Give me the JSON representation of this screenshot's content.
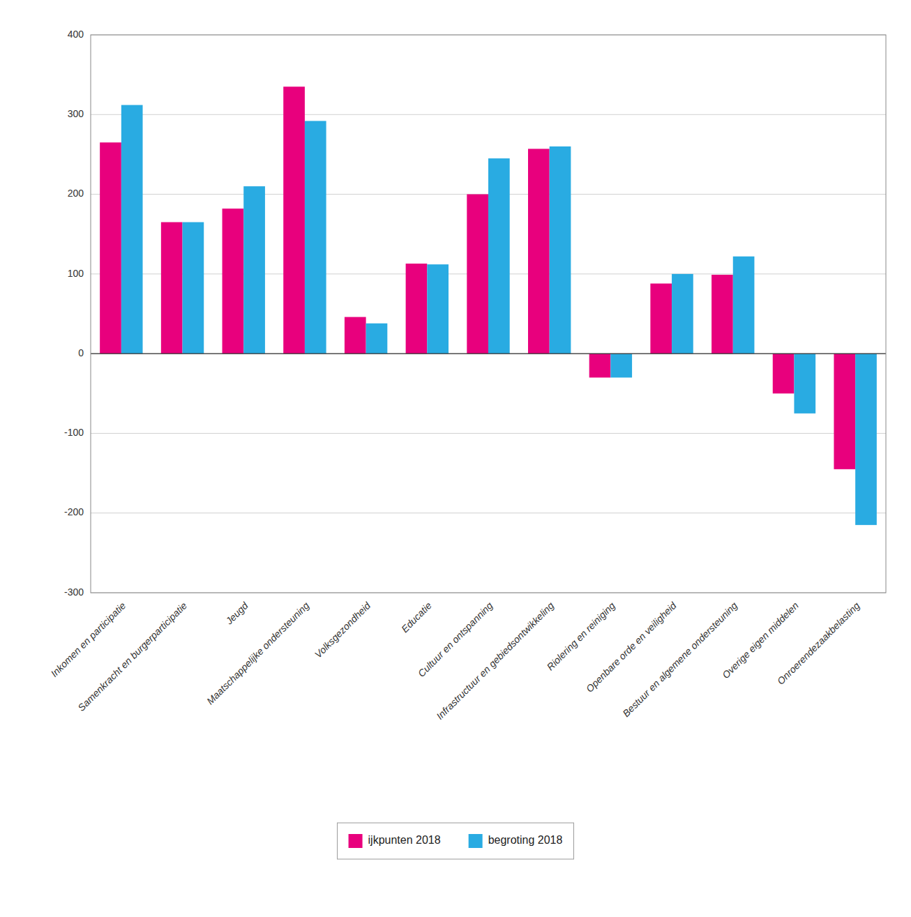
{
  "chart_data": {
    "type": "bar",
    "categories": [
      "Inkomen en participatie",
      "Samenkracht en burgerparticipatie",
      "Jeugd",
      "Maatschappelijke ondersteuning",
      "Volksgezondheid",
      "Educatie",
      "Cultuur en ontspanning",
      "Infrastructuur en gebiedsontwikkeling",
      "Riolering en reiniging",
      "Openbare orde en veiligheid",
      "Bestuur en algemene ondersteuning",
      "Overige eigen middelen",
      "Onroerendezaakbelasting"
    ],
    "series": [
      {
        "name": "ijkpunten 2018",
        "color": "#E8007D",
        "values": [
          265,
          165,
          182,
          335,
          46,
          113,
          200,
          257,
          -30,
          88,
          99,
          -50,
          -145
        ]
      },
      {
        "name": "begroting 2018",
        "color": "#29ABE2",
        "values": [
          312,
          165,
          210,
          292,
          38,
          112,
          245,
          260,
          -30,
          100,
          122,
          -75,
          -215
        ]
      }
    ],
    "ylim": [
      -300,
      400
    ],
    "yticks": [
      -300,
      -200,
      -100,
      0,
      100,
      200,
      300,
      400
    ],
    "grid": true,
    "legend": "bottom"
  }
}
